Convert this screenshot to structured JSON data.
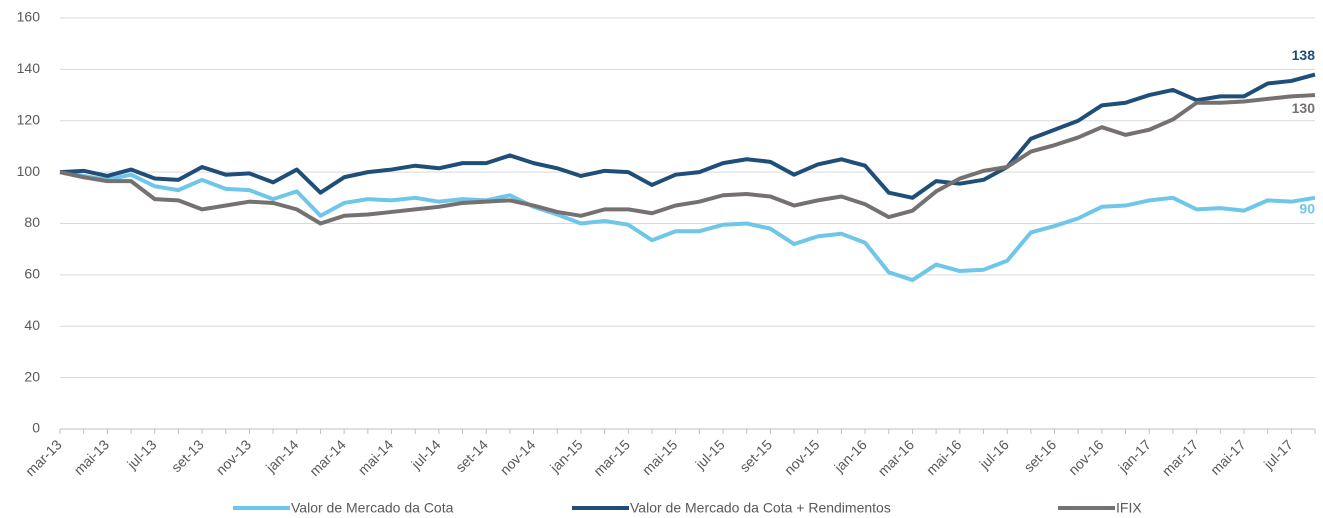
{
  "chart_data": {
    "type": "line",
    "categories": [
      "mar-13",
      null,
      "mai-13",
      null,
      "jul-13",
      null,
      "set-13",
      null,
      "nov-13",
      null,
      "jan-14",
      null,
      "mar-14",
      null,
      "mai-14",
      null,
      "jul-14",
      null,
      "set-14",
      null,
      "nov-14",
      null,
      "jan-15",
      null,
      "mar-15",
      null,
      "mai-15",
      null,
      "jul-15",
      null,
      "set-15",
      null,
      "nov-15",
      null,
      "jan-16",
      null,
      "mar-16",
      null,
      "mai-16",
      null,
      "jul-16",
      null,
      "set-16",
      null,
      "nov-16",
      null,
      "jan-17",
      null,
      "mar-17",
      null,
      "mai-17",
      null,
      "jul-17",
      null
    ],
    "series": [
      {
        "name": "Valor de Mercado da Cota",
        "color": "#6ec6e8",
        "values": [
          100,
          98.5,
          97,
          99,
          94.5,
          93,
          97,
          93.5,
          93,
          89.5,
          92.5,
          83,
          88,
          89.5,
          89,
          90,
          88.5,
          89.5,
          89,
          91,
          86.5,
          83.5,
          80,
          81,
          79.5,
          73.5,
          77,
          77,
          79.5,
          80,
          78,
          72,
          75,
          76,
          72.5,
          61,
          58,
          64,
          61.5,
          62,
          65.5,
          76.5,
          79,
          82,
          86.5,
          87,
          89,
          90,
          85.5,
          86,
          85,
          89,
          88.5,
          90
        ]
      },
      {
        "name": "Valor de Mercado da Cota + Rendimentos",
        "color": "#1f4e79",
        "values": [
          100,
          100.5,
          98.5,
          101,
          97.5,
          97,
          102,
          99,
          99.5,
          96,
          101,
          92,
          98,
          100,
          101,
          102.5,
          101.5,
          103.5,
          103.5,
          106.5,
          103.5,
          101.5,
          98.5,
          100.5,
          100,
          95,
          99,
          100,
          103.5,
          105,
          104,
          99,
          103,
          105,
          102.5,
          92,
          90,
          96.5,
          95.5,
          97,
          102,
          113,
          116.5,
          120,
          126,
          127,
          130,
          132,
          128,
          129.5,
          129.5,
          134.5,
          135.5,
          138
        ]
      },
      {
        "name": "IFIX",
        "color": "#767171",
        "values": [
          100,
          98,
          96.5,
          96.5,
          89.5,
          89,
          85.5,
          87,
          88.5,
          88,
          85.5,
          80,
          83,
          83.5,
          84.5,
          85.5,
          86.5,
          88,
          88.5,
          89,
          87,
          84.5,
          83,
          85.5,
          85.5,
          84,
          87,
          88.5,
          91,
          91.5,
          90.5,
          87,
          89,
          90.5,
          87.5,
          82.5,
          85,
          92.5,
          97.5,
          100.5,
          102,
          108,
          110.5,
          113.5,
          117.5,
          114.5,
          116.5,
          120.5,
          127,
          127,
          127.5,
          128.5,
          129.5,
          130
        ]
      }
    ],
    "ylim": [
      0,
      160
    ],
    "yticks": [
      0,
      20,
      40,
      60,
      80,
      100,
      120,
      140,
      160
    ],
    "grid": true
  }
}
